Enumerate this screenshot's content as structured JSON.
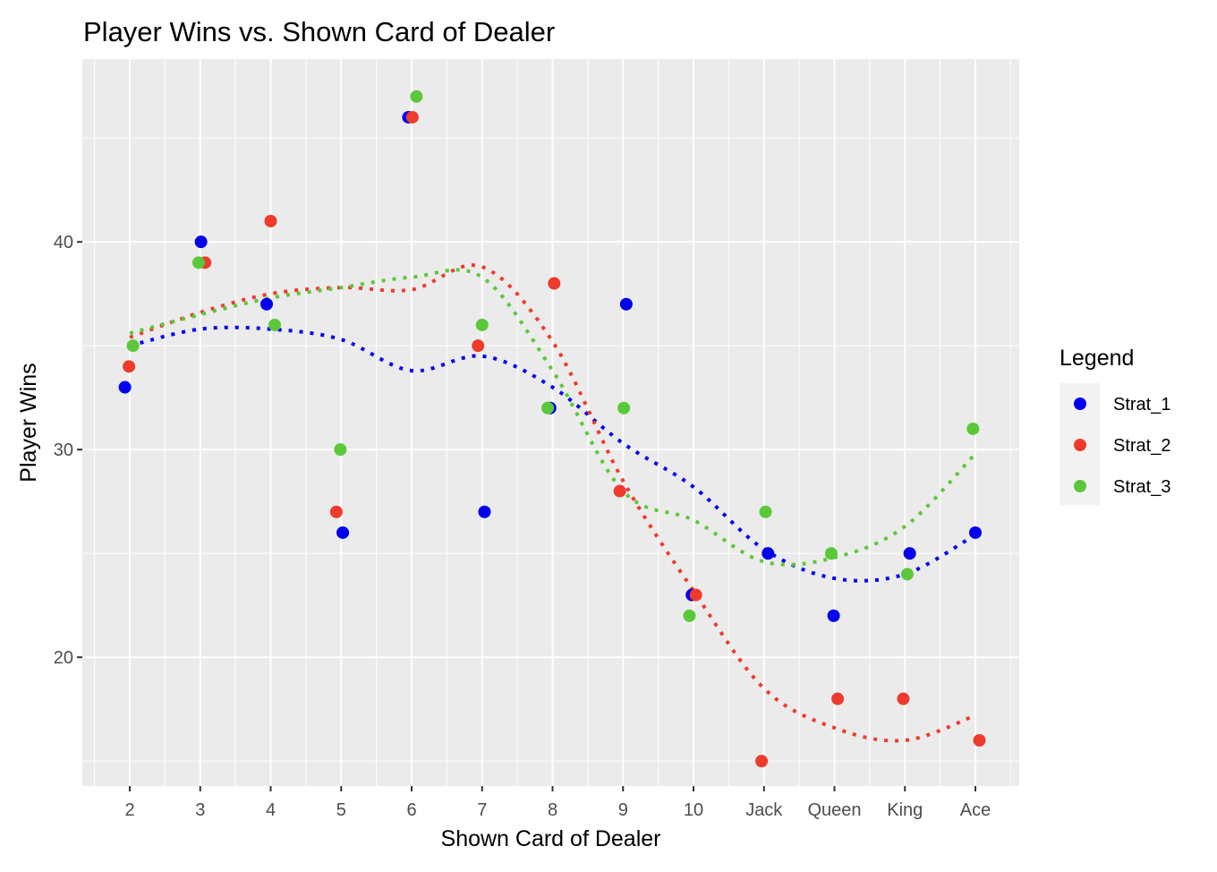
{
  "chart_data": {
    "type": "scatter",
    "title": "Player Wins vs. Shown Card of Dealer",
    "xlabel": "Shown Card of Dealer",
    "ylabel": "Player Wins",
    "categories": [
      "2",
      "3",
      "4",
      "5",
      "6",
      "7",
      "8",
      "9",
      "10",
      "Jack",
      "Queen",
      "King",
      "Ace"
    ],
    "y_ticks": [
      20,
      30,
      40
    ],
    "ylim": [
      13.8,
      48.8
    ],
    "grid": true,
    "legend": {
      "title": "Legend",
      "position": "right"
    },
    "series": [
      {
        "name": "Strat_1",
        "color": "#0000ee",
        "values": [
          33,
          40,
          37,
          26,
          46,
          27,
          32,
          37,
          23,
          25,
          22,
          25,
          26
        ],
        "trend": [
          35.0,
          35.8,
          35.8,
          35.3,
          33.8,
          34.5,
          33.0,
          30.3,
          28.2,
          25.2,
          23.8,
          24.0,
          25.9
        ]
      },
      {
        "name": "Strat_2",
        "color": "#ee3b2c",
        "values": [
          34,
          39,
          41,
          27,
          46,
          35,
          38,
          28,
          23,
          15,
          18,
          18,
          16
        ],
        "trend": [
          35.4,
          36.6,
          37.5,
          37.8,
          37.7,
          38.8,
          35.2,
          28.5,
          23.2,
          18.5,
          16.6,
          16.0,
          17.2
        ]
      },
      {
        "name": "Strat_3",
        "color": "#5bc83a",
        "values": [
          35,
          39,
          36,
          30,
          47,
          36,
          32,
          32,
          22,
          27,
          25,
          24,
          31
        ],
        "trend": [
          35.6,
          36.5,
          37.3,
          37.8,
          38.3,
          38.3,
          33.8,
          28.0,
          26.6,
          24.6,
          24.8,
          26.3,
          29.8
        ]
      }
    ]
  }
}
